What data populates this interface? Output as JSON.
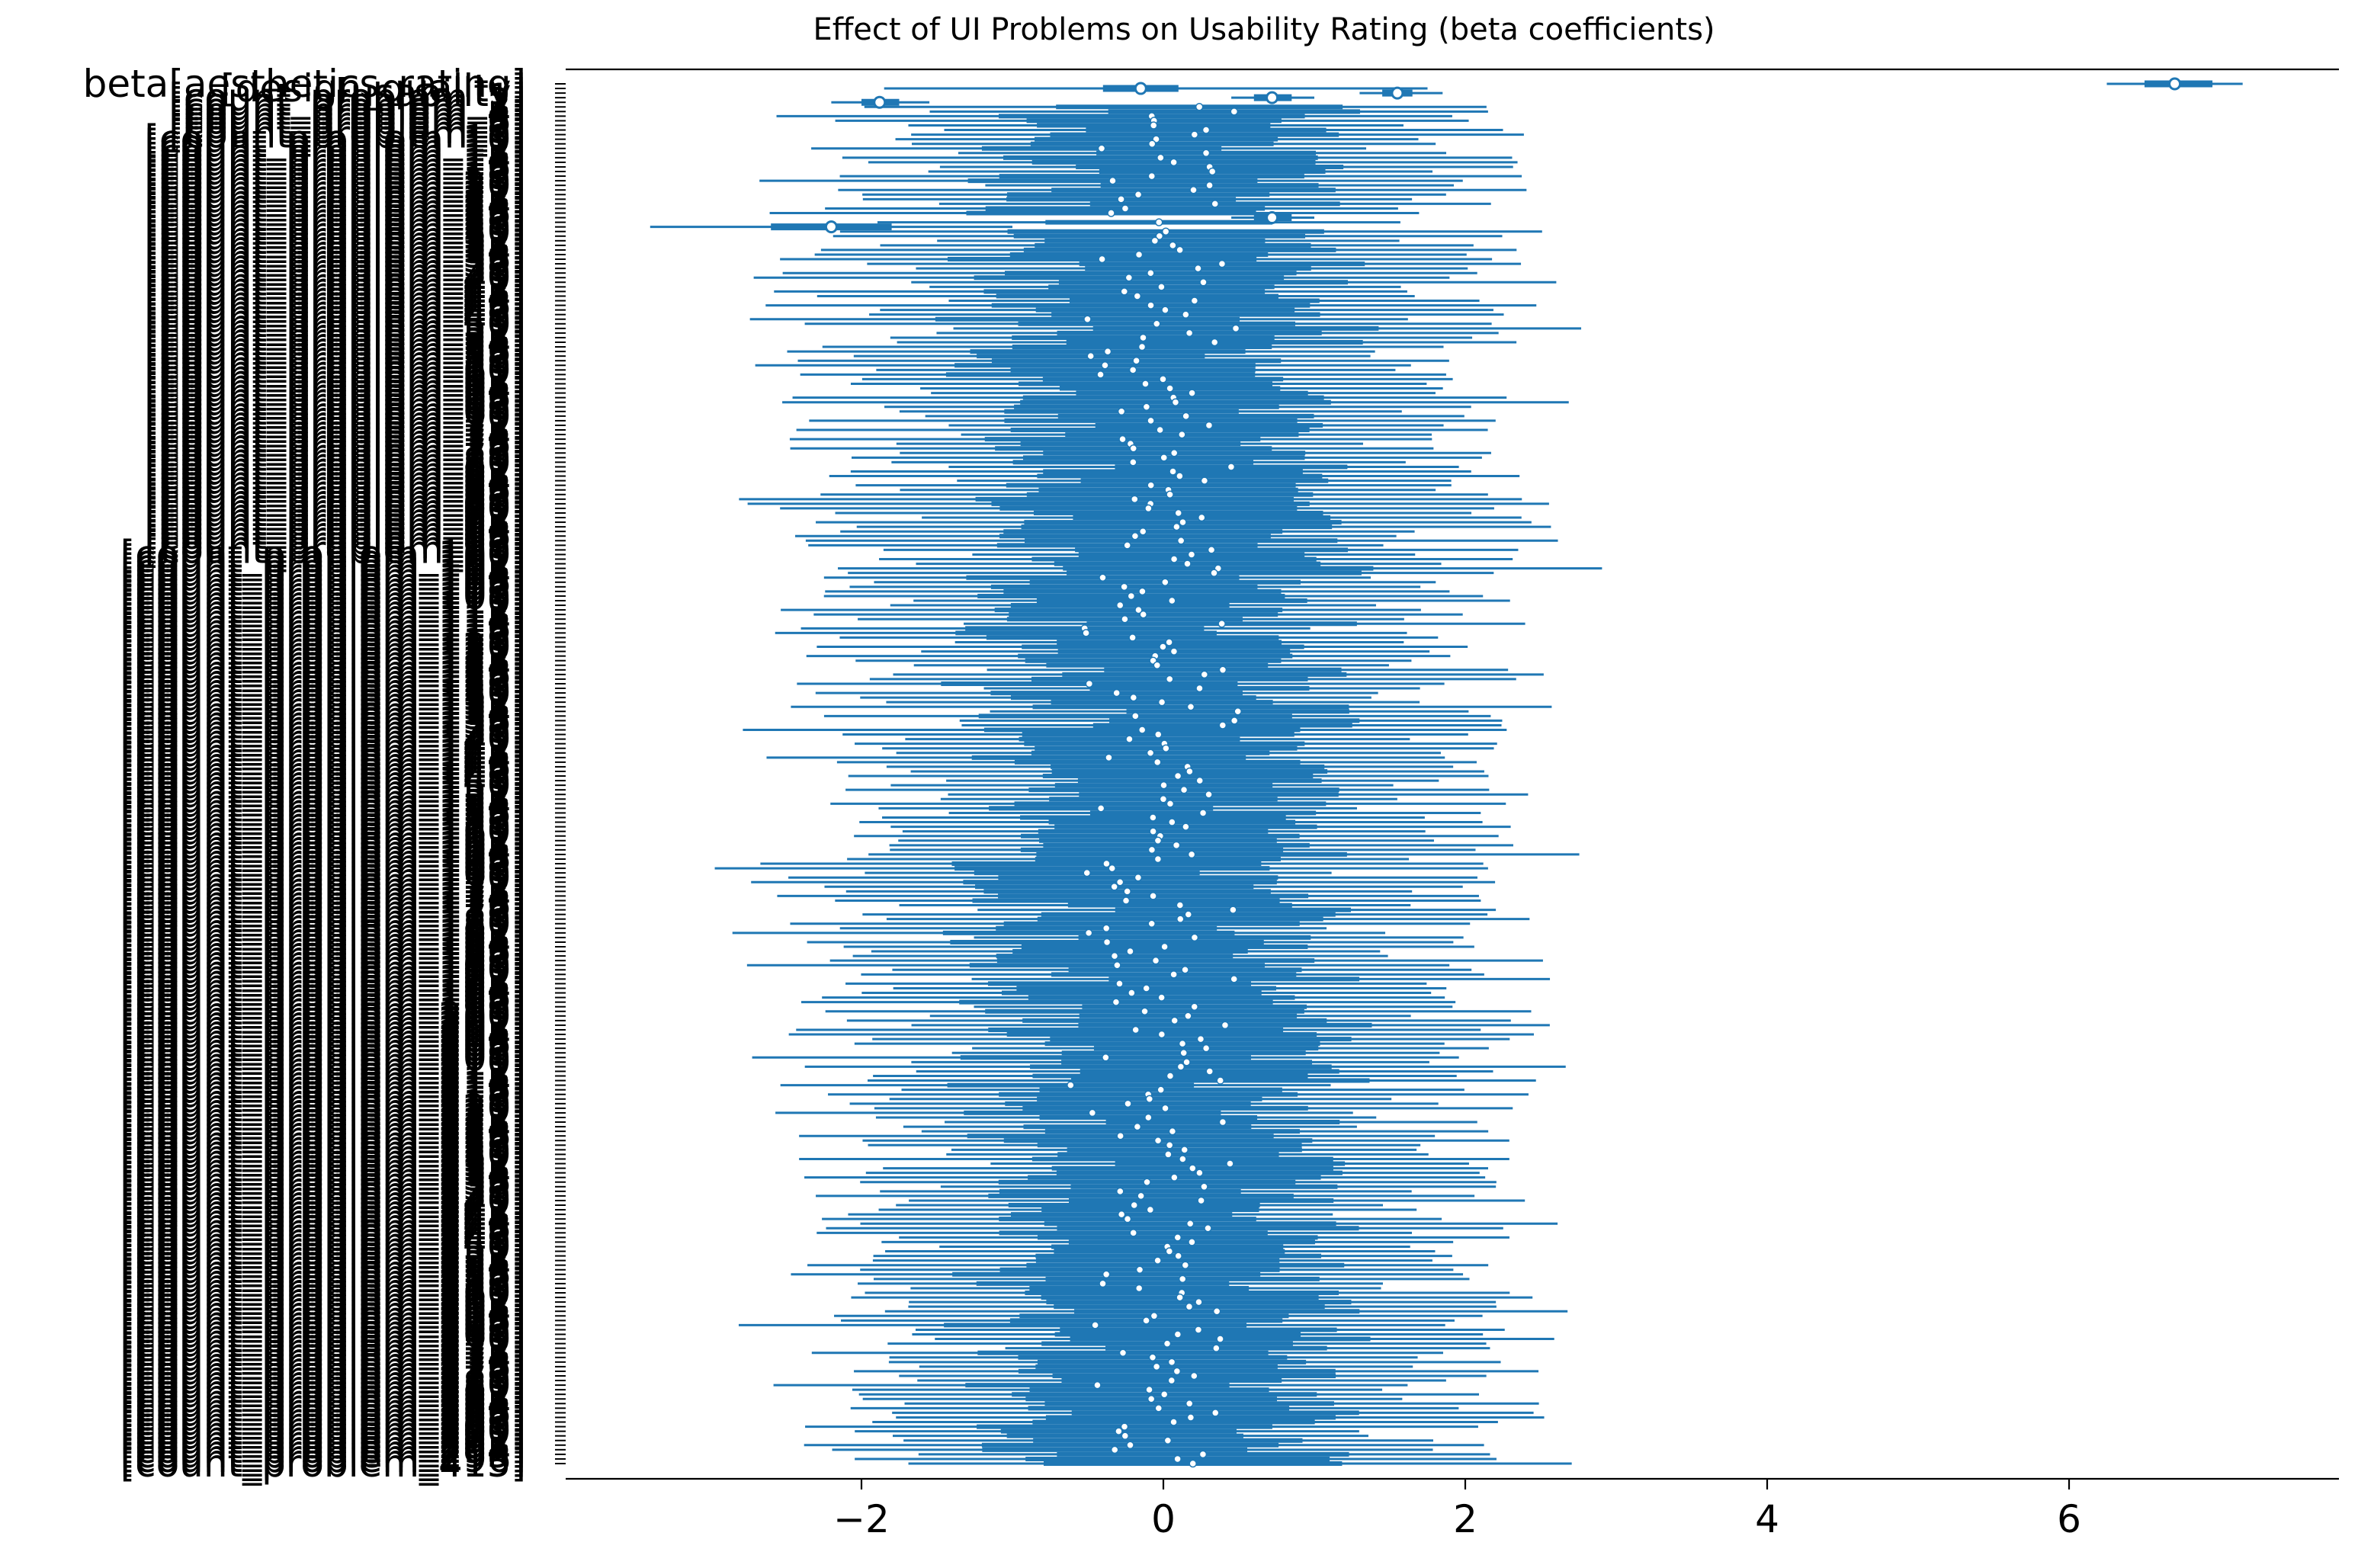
{
  "chart_data": {
    "type": "forest",
    "title": "Effect of UI Problems on Usability Rating (beta coefficients)",
    "xlabel": "",
    "ylabel": "",
    "xlim": [
      -3.95,
      7.6
    ],
    "x_ticks": [
      -2,
      0,
      2,
      4,
      6
    ],
    "x_tick_labels": [
      "−2",
      "0",
      "2",
      "4",
      "6"
    ],
    "n_parameters": 300,
    "first_labels": [
      "beta[aesthetics_rating]",
      "[design_quality]",
      "[usability]"
    ],
    "last_label": "[count_problem_415]",
    "highlighted": [
      {
        "rank": 1,
        "median": 6.7,
        "hdi_50": [
          6.5,
          6.95
        ],
        "hdi_94": [
          6.25,
          7.15
        ]
      },
      {
        "rank": 2,
        "median": -0.15,
        "hdi_50": [
          -0.4,
          0.1
        ],
        "hdi_94": [
          -1.85,
          1.75
        ]
      },
      {
        "rank": 3,
        "median": 1.55,
        "hdi_50": [
          1.45,
          1.65
        ],
        "hdi_94": [
          1.3,
          1.85
        ]
      },
      {
        "rank": 4,
        "median": 0.72,
        "hdi_50": [
          0.6,
          0.85
        ],
        "hdi_94": [
          0.45,
          1.0
        ]
      },
      {
        "rank": 5,
        "median": -1.88,
        "hdi_50": [
          -2.0,
          -1.75
        ],
        "hdi_94": [
          -2.2,
          -1.55
        ]
      },
      {
        "rank": 30,
        "median": 0.72,
        "hdi_50": [
          0.6,
          0.85
        ],
        "hdi_94": [
          0.45,
          1.0
        ]
      },
      {
        "rank": 32,
        "median": -2.2,
        "hdi_50": [
          -2.6,
          -1.8
        ],
        "hdi_94": [
          -3.4,
          -1.0
        ]
      }
    ],
    "problem_effects": {
      "median_spread": 0.45,
      "hdi_94_halfwidth_min": 1.6,
      "hdi_94_halfwidth_max": 2.35
    },
    "colors": {
      "series": "#1f77b4",
      "marker_fill": "#ffffff",
      "axis": "#000000"
    }
  }
}
